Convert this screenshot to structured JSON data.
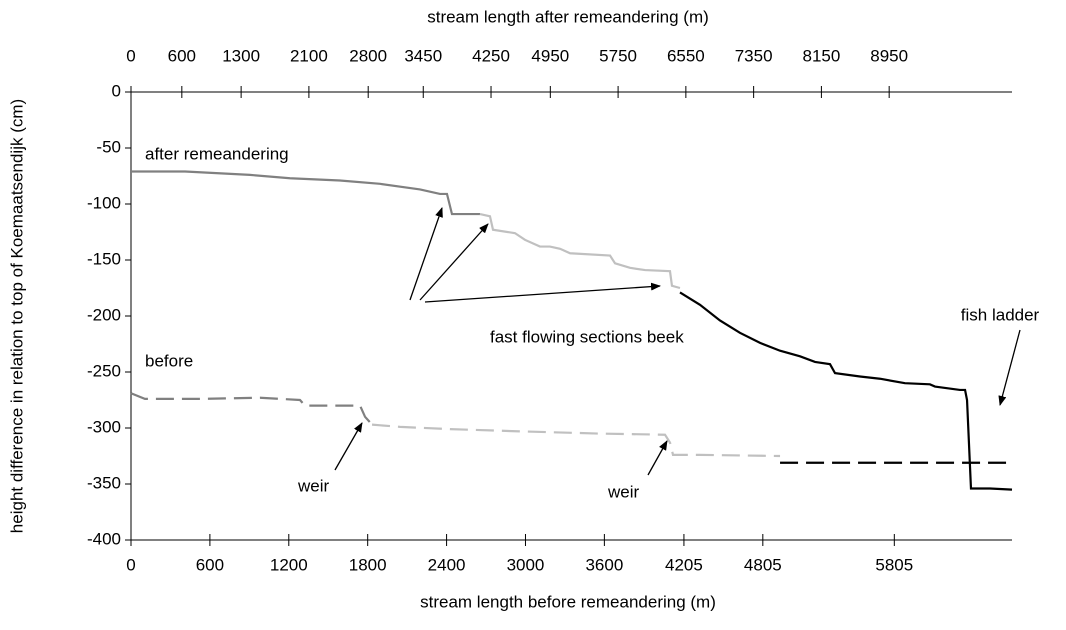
{
  "chart_data": {
    "type": "line",
    "x_label": "stream length before remeandering (m)",
    "x2_label": "stream length after remeandering (m)",
    "y_label": "height difference in relation to top of Koemaatsendijk (cm)",
    "xlim": [
      0,
      6700
    ],
    "xticks": [
      0,
      600,
      1200,
      1800,
      2400,
      3000,
      3600,
      4205,
      4805,
      5805
    ],
    "x2lim": [
      0,
      10400
    ],
    "x2ticks": [
      0,
      600,
      1300,
      2100,
      2800,
      3450,
      4250,
      4950,
      5750,
      6550,
      7350,
      8150,
      8950
    ],
    "ylim": [
      -400,
      0
    ],
    "yticks": [
      0,
      -50,
      -100,
      -150,
      -200,
      -250,
      -300,
      -350,
      -400
    ],
    "series": [
      {
        "color": "#808080",
        "dashed": false,
        "x": [
          0,
          411,
          905,
          1209,
          1589,
          1894,
          2198,
          2350,
          2403,
          2441,
          2654
        ],
        "values": [
          -71,
          -71,
          -74,
          -77,
          -79,
          -82,
          -87,
          -91,
          -91,
          -109,
          -109
        ]
      },
      {
        "color": "#c0c0c0",
        "dashed": false,
        "x": [
          2654,
          2730,
          2753,
          2920,
          2996,
          3110,
          3186,
          3263,
          3339,
          3643,
          3681,
          3795,
          3909,
          4099,
          4114,
          4175
        ],
        "values": [
          -109,
          -111,
          -123,
          -126,
          -132,
          -138,
          -138,
          -140,
          -144,
          -146,
          -153,
          -157,
          -159,
          -160,
          -173,
          -175
        ]
      },
      {
        "color": "#000000",
        "dashed": false,
        "x": [
          4175,
          4327,
          4479,
          4631,
          4784,
          4936,
          5088,
          5202,
          5316,
          5354,
          5544,
          5696,
          5886,
          6076,
          6114,
          6304,
          6343,
          6358,
          6388,
          6533,
          6700
        ],
        "values": [
          -179,
          -190,
          -204,
          -215,
          -224,
          -231,
          -236,
          -241,
          -243,
          -251,
          -254,
          -256,
          -260,
          -261,
          -263,
          -266,
          -266,
          -275,
          -354,
          -354,
          -355
        ]
      },
      {
        "color": "#808080",
        "dashed": true,
        "x": [
          0,
          106,
          525,
          981,
          1285,
          1323,
          1742,
          1780,
          1833
        ],
        "values": [
          -269,
          -274,
          -274,
          -273,
          -275,
          -280,
          -280,
          -290,
          -297
        ]
      },
      {
        "color": "#c0c0c0",
        "dashed": true,
        "x": [
          1833,
          2046,
          2426,
          2958,
          3567,
          4061,
          4099,
          4122,
          4327,
          4936
        ],
        "values": [
          -297,
          -299,
          -301,
          -303,
          -305,
          -306,
          -313,
          -324,
          -324,
          -325
        ]
      },
      {
        "color": "#000000",
        "dashed": true,
        "x": [
          4936,
          6700
        ],
        "values": [
          -331,
          -331
        ]
      }
    ],
    "annotations": [
      "after remeandering",
      "before",
      "fast flowing sections beek",
      "weir",
      "weir",
      "fish ladder"
    ]
  }
}
